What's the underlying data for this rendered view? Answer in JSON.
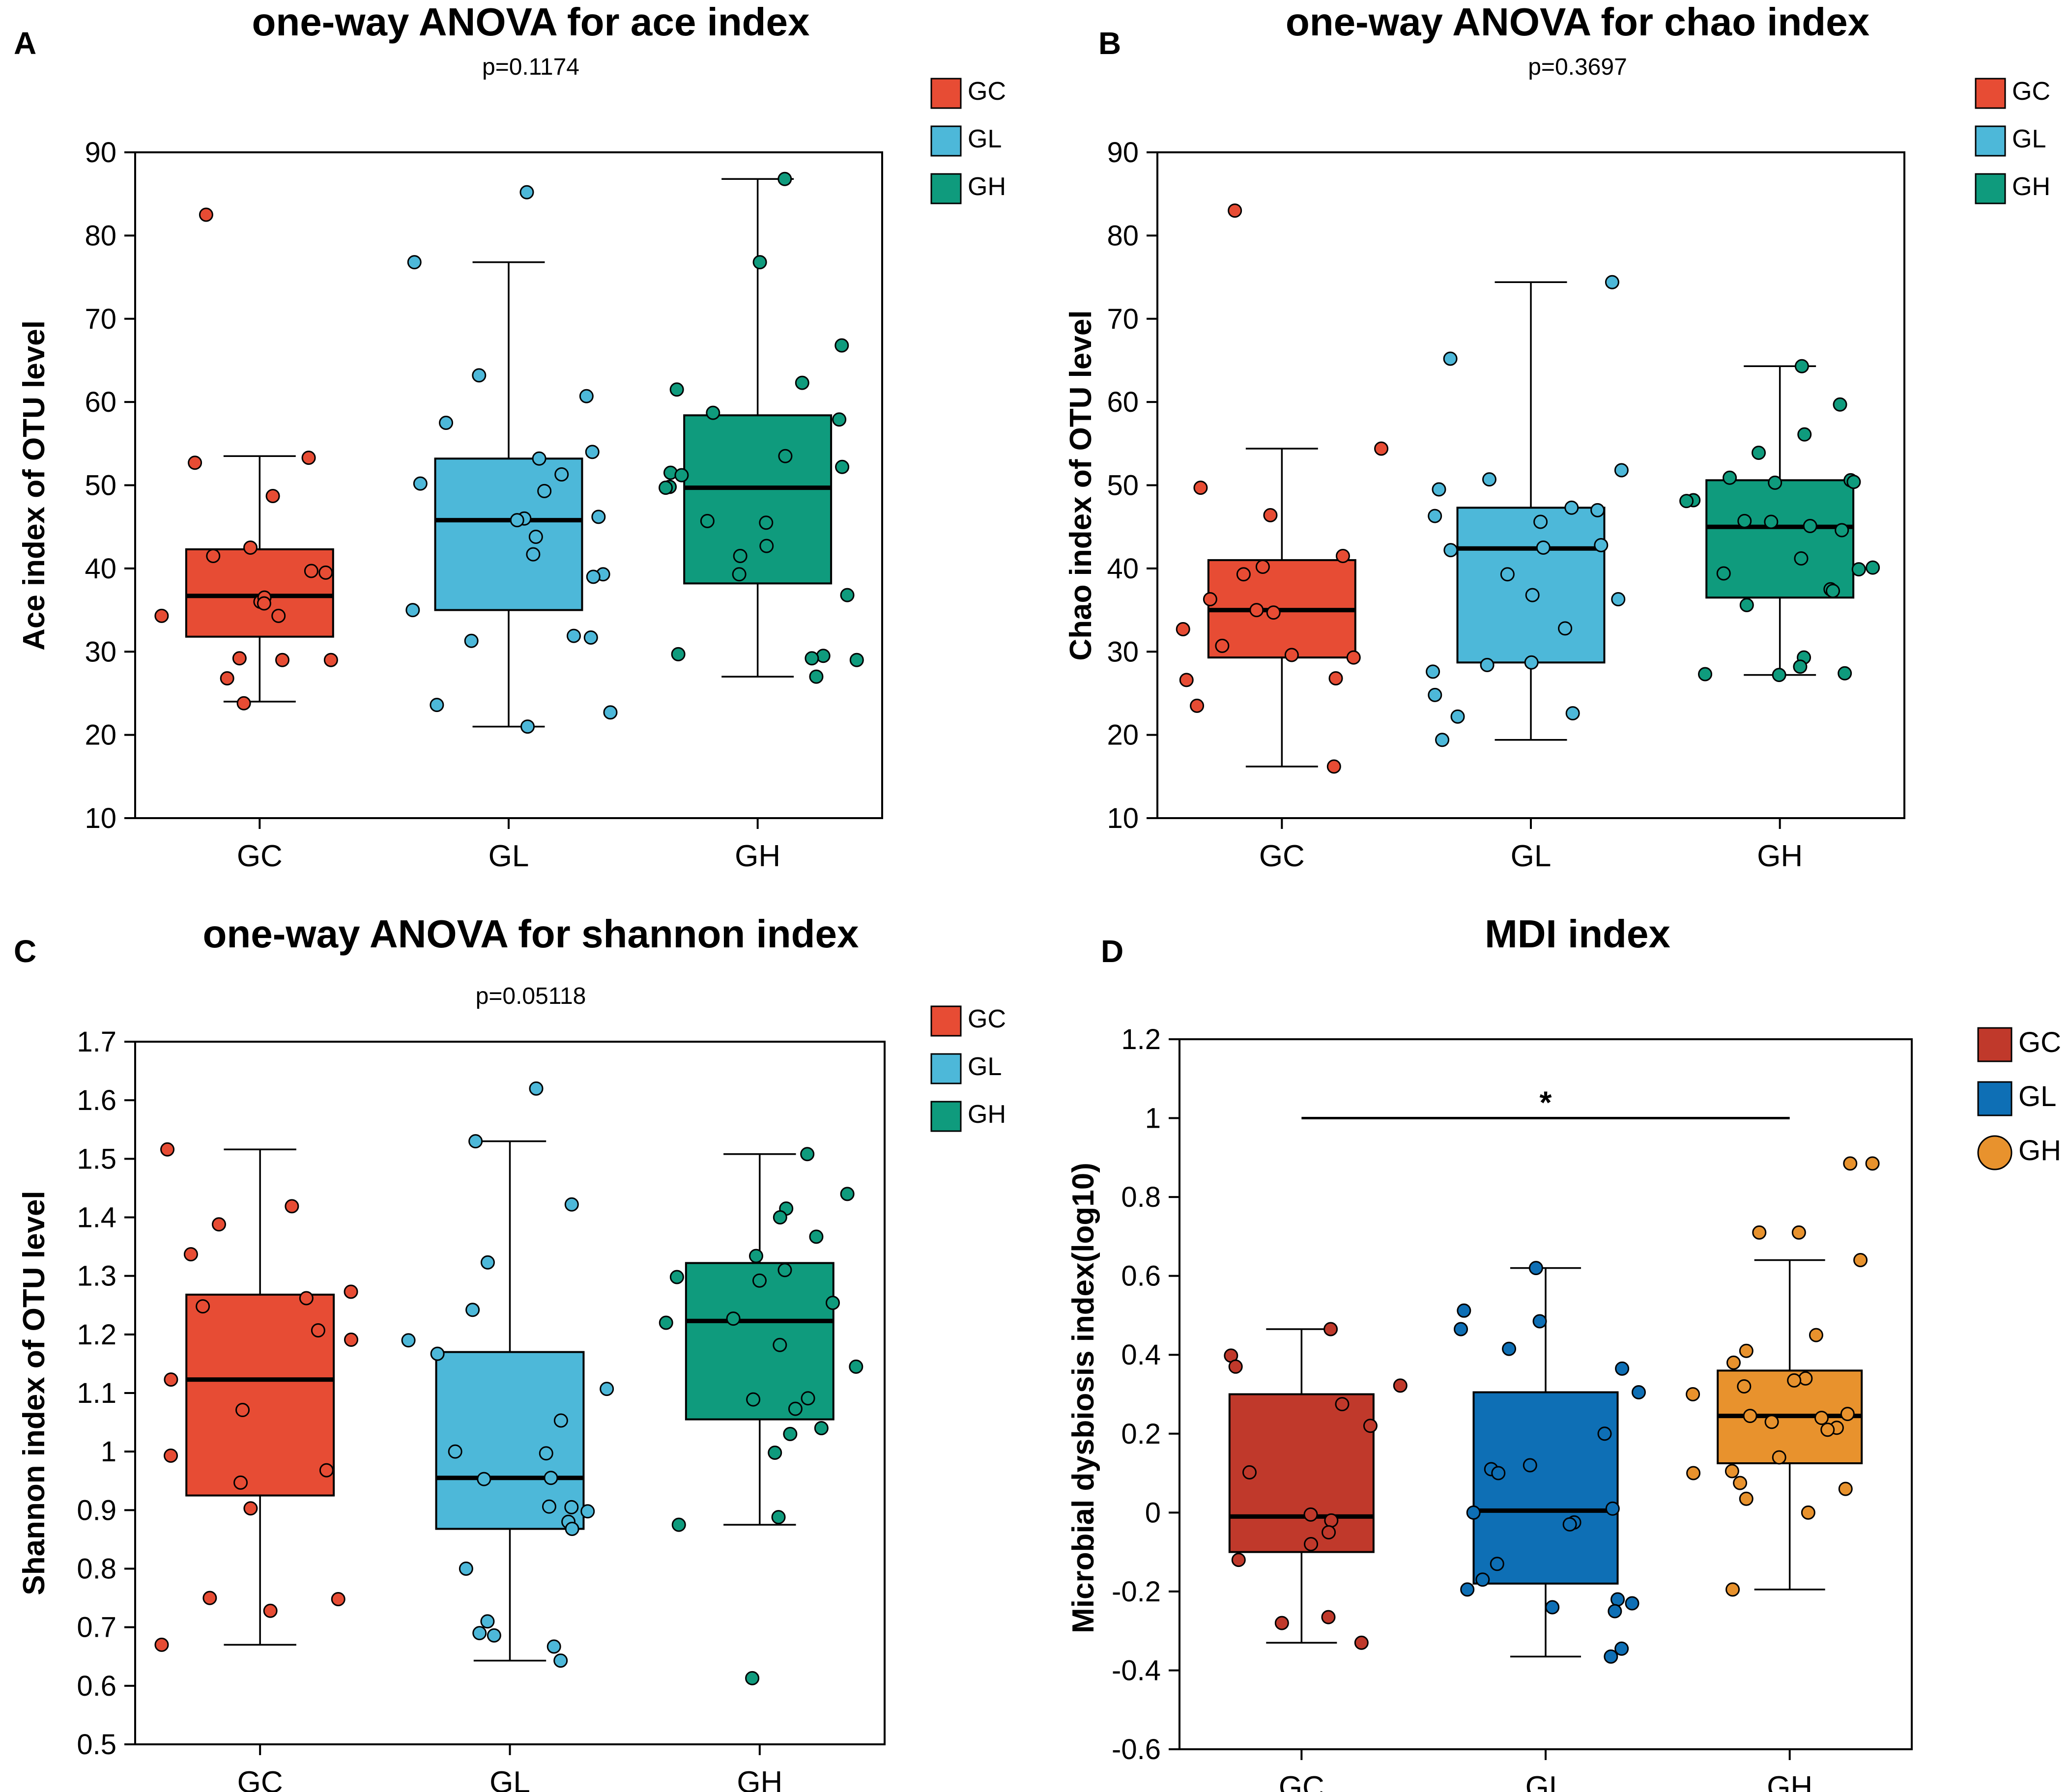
{
  "colors": {
    "gc": "#e74c34",
    "gl": "#4db8d9",
    "gh": "#0f9b7d",
    "gc_d": "#c0392b",
    "gl_d": "#0e6fb5",
    "gh_d": "#e8922d",
    "axis": "#000000"
  },
  "chart_data": [
    {
      "panel": "A",
      "type": "box",
      "title": "one-way ANOVA for ace index",
      "subtitle": "p=0.1174",
      "ylabel": "Ace index of OTU level",
      "xlabel": "",
      "ylim": [
        10,
        90
      ],
      "yticks": [
        "10",
        "20",
        "30",
        "40",
        "50",
        "60",
        "70",
        "80",
        "90"
      ],
      "legend": [
        "GC",
        "GL",
        "GH"
      ],
      "groups": [
        {
          "name": "GC",
          "q1": 31.8,
          "median": 36.7,
          "q3": 42.3,
          "wlo": 24.0,
          "whi": 53.5,
          "points": [
            52.7,
            53.3,
            48.7,
            42.5,
            41.5,
            39.5,
            39.7,
            36.0,
            36.5,
            35.8,
            34.3,
            34.3,
            29.0,
            29.2,
            29.0,
            26.8,
            23.8,
            82.5
          ]
        },
        {
          "name": "GL",
          "q1": 35.0,
          "median": 45.8,
          "q3": 53.2,
          "wlo": 21.0,
          "whi": 76.8,
          "points": [
            85.2,
            76.8,
            63.2,
            60.7,
            57.5,
            54.0,
            53.2,
            51.3,
            50.2,
            49.3,
            46.2,
            46.0,
            45.8,
            43.8,
            41.7,
            39.3,
            39.0,
            35.0,
            31.9,
            31.7,
            31.3,
            23.6,
            22.7,
            21.0
          ]
        },
        {
          "name": "GH",
          "q1": 38.2,
          "median": 49.7,
          "q3": 58.4,
          "wlo": 27.0,
          "whi": 86.8,
          "points": [
            86.8,
            76.8,
            66.8,
            62.3,
            61.5,
            58.7,
            57.9,
            53.5,
            52.2,
            51.5,
            51.2,
            49.8,
            49.7,
            45.7,
            45.5,
            42.7,
            41.5,
            39.3,
            36.8,
            29.7,
            29.5,
            29.2,
            29.0,
            27.0
          ]
        }
      ]
    },
    {
      "panel": "B",
      "type": "box",
      "title": "one-way ANOVA for chao index",
      "subtitle": "p=0.3697",
      "ylabel": "Chao index of OTU level",
      "xlabel": "",
      "ylim": [
        10,
        90
      ],
      "yticks": [
        "10",
        "20",
        "30",
        "40",
        "50",
        "60",
        "70",
        "80",
        "90"
      ],
      "legend": [
        "GC",
        "GL",
        "GH"
      ],
      "groups": [
        {
          "name": "GC",
          "q1": 29.3,
          "median": 35.0,
          "q3": 41.0,
          "wlo": 16.2,
          "whi": 54.4,
          "points": [
            83.0,
            54.4,
            49.7,
            46.4,
            41.5,
            40.2,
            39.3,
            36.3,
            35.0,
            34.7,
            32.7,
            30.7,
            29.6,
            29.3,
            26.8,
            26.6,
            23.5,
            16.2
          ]
        },
        {
          "name": "GL",
          "q1": 28.7,
          "median": 42.4,
          "q3": 47.3,
          "wlo": 19.4,
          "whi": 74.4,
          "points": [
            74.4,
            65.2,
            51.8,
            50.7,
            49.5,
            47.3,
            47.0,
            46.3,
            45.6,
            42.8,
            42.5,
            42.2,
            39.3,
            36.8,
            36.3,
            32.8,
            28.7,
            28.4,
            27.6,
            24.8,
            22.6,
            22.2,
            19.4
          ]
        },
        {
          "name": "GH",
          "q1": 36.5,
          "median": 45.0,
          "q3": 50.6,
          "wlo": 27.2,
          "whi": 64.3,
          "points": [
            64.3,
            59.7,
            56.1,
            53.9,
            50.9,
            50.6,
            50.4,
            50.3,
            48.2,
            48.1,
            45.7,
            45.6,
            45.1,
            44.6,
            41.2,
            40.1,
            39.9,
            39.4,
            37.5,
            37.3,
            35.6,
            29.3,
            28.2,
            27.4,
            27.3,
            27.2
          ]
        }
      ]
    },
    {
      "panel": "C",
      "type": "box",
      "title": "one-way ANOVA for shannon index",
      "subtitle": "p=0.05118",
      "ylabel": "Shannon index of OTU level",
      "xlabel": "",
      "ylim": [
        0.5,
        1.7
      ],
      "yticks": [
        "0.5",
        "0.6",
        "0.7",
        "0.8",
        "0.9",
        "1",
        "1.1",
        "1.2",
        "1.3",
        "1.4",
        "1.5",
        "1.6",
        "1.7"
      ],
      "legend": [
        "GC",
        "GL",
        "GH"
      ],
      "groups": [
        {
          "name": "GC",
          "q1": 0.925,
          "median": 1.123,
          "q3": 1.268,
          "wlo": 0.67,
          "whi": 1.516,
          "points": [
            1.516,
            1.419,
            1.388,
            1.337,
            1.273,
            1.262,
            1.248,
            1.207,
            1.191,
            1.123,
            1.071,
            0.993,
            0.968,
            0.947,
            0.903,
            0.75,
            0.748,
            0.728,
            0.67
          ]
        },
        {
          "name": "GL",
          "q1": 0.868,
          "median": 0.955,
          "q3": 1.17,
          "wlo": 0.643,
          "whi": 1.53,
          "points": [
            1.62,
            1.53,
            1.422,
            1.323,
            1.242,
            1.19,
            1.167,
            1.107,
            1.053,
            1.0,
            0.997,
            0.955,
            0.953,
            0.906,
            0.905,
            0.898,
            0.88,
            0.868,
            0.8,
            0.71,
            0.69,
            0.686,
            0.667,
            0.643
          ]
        },
        {
          "name": "GH",
          "q1": 1.055,
          "median": 1.223,
          "q3": 1.322,
          "wlo": 0.875,
          "whi": 1.508,
          "points": [
            1.508,
            1.44,
            1.415,
            1.4,
            1.367,
            1.334,
            1.31,
            1.298,
            1.292,
            1.254,
            1.227,
            1.22,
            1.182,
            1.145,
            1.091,
            1.089,
            1.073,
            1.04,
            1.03,
            0.998,
            0.888,
            0.875,
            0.613
          ]
        }
      ]
    },
    {
      "panel": "D",
      "type": "box",
      "title": "MDI index",
      "subtitle": "",
      "ylabel": "Microbial dysbiosis index(log10)",
      "xlabel": "",
      "ylim": [
        -0.6,
        1.2
      ],
      "yticks": [
        "-0.6",
        "-0.4",
        "-0.2",
        "0",
        "0.2",
        "0.4",
        "0.6",
        "0.8",
        "1",
        "1.2"
      ],
      "legend": [
        "GC",
        "GL",
        "GH"
      ],
      "significance": {
        "from": "GC",
        "to": "GH",
        "y": 1.0,
        "label": "*"
      },
      "groups": [
        {
          "name": "GC",
          "q1": -0.1,
          "median": -0.01,
          "q3": 0.3,
          "wlo": -0.33,
          "whi": 0.465,
          "points": [
            0.465,
            0.398,
            0.37,
            0.322,
            0.275,
            0.22,
            0.102,
            -0.005,
            -0.02,
            -0.05,
            -0.08,
            -0.12,
            -0.265,
            -0.28,
            -0.33
          ]
        },
        {
          "name": "GL",
          "q1": -0.18,
          "median": 0.005,
          "q3": 0.305,
          "wlo": -0.365,
          "whi": 0.62,
          "points": [
            0.62,
            0.512,
            0.485,
            0.465,
            0.415,
            0.365,
            0.305,
            0.2,
            0.12,
            0.11,
            0.1,
            0.01,
            0.0,
            -0.025,
            -0.03,
            -0.13,
            -0.17,
            -0.22,
            -0.195,
            -0.24,
            -0.25,
            -0.23,
            -0.345,
            -0.365
          ]
        },
        {
          "name": "GH",
          "q1": 0.125,
          "median": 0.245,
          "q3": 0.36,
          "wlo": -0.195,
          "whi": 0.64,
          "points": [
            0.885,
            0.885,
            0.71,
            0.71,
            0.64,
            0.45,
            0.41,
            0.38,
            0.34,
            0.335,
            0.32,
            0.3,
            0.25,
            0.245,
            0.24,
            0.23,
            0.215,
            0.21,
            0.14,
            0.105,
            0.1,
            0.075,
            0.06,
            0.035,
            0.0,
            -0.195
          ]
        }
      ]
    }
  ]
}
